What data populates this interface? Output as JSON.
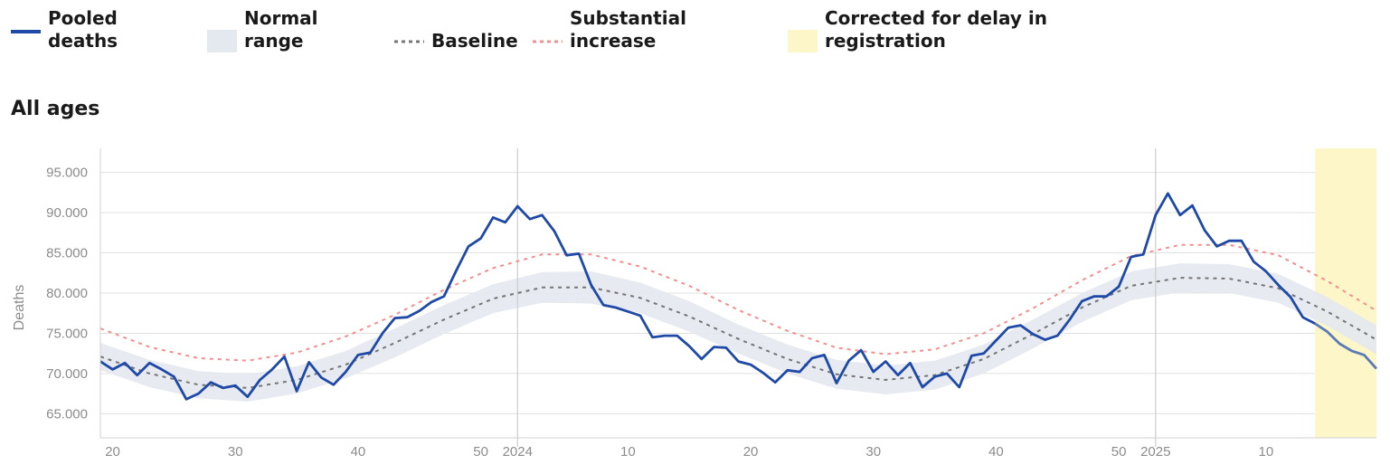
{
  "legend": {
    "pooled_deaths": "Pooled\ndeaths",
    "normal_range": "Normal\nrange",
    "baseline": "Baseline",
    "substantial_increase": "Substantial\nincrease",
    "corrected": "Corrected for delay in\nregistration"
  },
  "colors": {
    "pooled": "#1f49a6",
    "pooled_corrected": "#5a7bb5",
    "band": "#e4e9f0",
    "baseline": "#757575",
    "substantial": "#f28f8f",
    "corrected_shade": "#fdf6c8",
    "grid": "#e0e0e0",
    "year_line": "#cccccc"
  },
  "panel_title": "All ages",
  "chart_data": {
    "type": "line",
    "ylabel": "Deaths",
    "ylim": [
      62000,
      98000
    ],
    "y_ticks": [
      65000,
      70000,
      75000,
      80000,
      85000,
      90000,
      95000
    ],
    "y_tick_labels": [
      "65.000",
      "70.000",
      "75.000",
      "80.000",
      "85.000",
      "90.000",
      "95.000"
    ],
    "x_range": [
      1,
      105
    ],
    "x_ticks": [
      {
        "x": 2,
        "label": "20"
      },
      {
        "x": 12,
        "label": "30"
      },
      {
        "x": 22,
        "label": "40"
      },
      {
        "x": 32,
        "label": "50"
      },
      {
        "x": 35,
        "label": "2024"
      },
      {
        "x": 44,
        "label": "10"
      },
      {
        "x": 54,
        "label": "20"
      },
      {
        "x": 64,
        "label": "30"
      },
      {
        "x": 74,
        "label": "40"
      },
      {
        "x": 84,
        "label": "50"
      },
      {
        "x": 87,
        "label": "2025"
      },
      {
        "x": 96,
        "label": "10"
      }
    ],
    "year_lines": [
      35,
      87
    ],
    "corrected_from": 100,
    "series": [
      {
        "name": "Pooled deaths",
        "x": [
          1,
          2,
          3,
          4,
          5,
          6,
          7,
          8,
          9,
          10,
          11,
          12,
          13,
          14,
          15,
          16,
          17,
          18,
          19,
          20,
          21,
          22,
          23,
          24,
          25,
          26,
          27,
          28,
          29,
          30,
          31,
          32,
          33,
          34,
          35,
          36,
          37,
          38,
          39,
          40,
          41,
          42,
          43,
          44,
          45,
          46,
          47,
          48,
          49,
          50,
          51,
          52,
          53,
          54,
          55,
          56,
          57,
          58,
          59,
          60,
          61,
          62,
          63,
          64,
          65,
          66,
          67,
          68,
          69,
          70,
          71,
          72,
          73,
          74,
          75,
          76,
          77,
          78,
          79,
          80,
          81,
          82,
          83,
          84,
          85,
          86,
          87,
          88,
          89,
          90,
          91,
          92,
          93,
          94,
          95,
          96,
          97,
          98,
          99,
          100,
          101,
          102,
          103,
          104,
          105
        ],
        "values": [
          71500,
          70500,
          71300,
          69800,
          71300,
          70500,
          69600,
          66800,
          67500,
          68900,
          68200,
          68500,
          67100,
          69200,
          70500,
          72100,
          67800,
          71400,
          69500,
          68600,
          70200,
          72300,
          72600,
          75000,
          76900,
          77000,
          77800,
          78900,
          79600,
          82800,
          85800,
          86800,
          89400,
          88800,
          90800,
          89200,
          89700,
          87700,
          84700,
          84900,
          81000,
          78500,
          78200,
          77700,
          77200,
          74500,
          74700,
          74700,
          73400,
          71800,
          73300,
          73200,
          71500,
          71100,
          70100,
          68900,
          70400,
          70200,
          71900,
          72300,
          68800,
          71600,
          72900,
          70200,
          71500,
          69800,
          71300,
          68300,
          69600,
          70000,
          68300,
          72200,
          72500,
          74100,
          75700,
          76000,
          74900,
          74200,
          74700,
          76700,
          79000,
          79600,
          79600,
          80800,
          84500,
          84800,
          89700,
          92400,
          89700,
          90900,
          87800,
          85800,
          86500,
          86500,
          83900,
          82700,
          81000,
          79500,
          77000,
          76200,
          75200,
          73700,
          72800,
          72300,
          70600
        ]
      },
      {
        "name": "Baseline",
        "x": [
          1,
          5,
          9,
          13,
          17,
          21,
          25,
          29,
          33,
          37,
          41,
          45,
          49,
          53,
          57,
          61,
          65,
          69,
          73,
          77,
          81,
          85,
          89,
          93,
          97,
          101,
          105
        ],
        "values": [
          72100,
          70000,
          68600,
          68200,
          69200,
          71100,
          73800,
          76700,
          79300,
          80700,
          80700,
          79400,
          77100,
          74300,
          71800,
          69900,
          69200,
          69800,
          71800,
          74900,
          78200,
          80900,
          81900,
          81800,
          80600,
          77700,
          74200
        ]
      },
      {
        "name": "Substantial increase",
        "x": [
          1,
          5,
          9,
          13,
          17,
          21,
          25,
          29,
          33,
          37,
          41,
          45,
          49,
          53,
          57,
          61,
          65,
          69,
          73,
          77,
          81,
          85,
          89,
          93,
          97,
          101,
          105
        ],
        "values": [
          75600,
          73300,
          71900,
          71600,
          72600,
          74600,
          77300,
          80400,
          83100,
          84800,
          84800,
          83300,
          80900,
          77900,
          75300,
          73200,
          72400,
          73000,
          75000,
          78100,
          81600,
          84600,
          86000,
          86000,
          84700,
          81500,
          77800
        ]
      },
      {
        "name": "Normal range",
        "x": [
          1,
          5,
          9,
          13,
          17,
          21,
          25,
          29,
          33,
          37,
          41,
          45,
          49,
          53,
          57,
          61,
          65,
          69,
          73,
          77,
          81,
          85,
          89,
          93,
          97,
          101,
          105
        ],
        "upper": [
          73800,
          71700,
          70300,
          69900,
          70900,
          72800,
          75600,
          78500,
          81100,
          82600,
          82700,
          81300,
          79000,
          76100,
          73600,
          71700,
          71000,
          71600,
          73600,
          76700,
          80000,
          82700,
          83700,
          83600,
          82400,
          79500,
          76000
        ],
        "lower": [
          70400,
          68300,
          66900,
          66500,
          67500,
          69400,
          72000,
          74900,
          77500,
          78800,
          78700,
          77500,
          75200,
          72500,
          70000,
          68100,
          67400,
          68000,
          70000,
          73100,
          76400,
          79100,
          80100,
          80000,
          78800,
          75900,
          72400
        ]
      }
    ]
  }
}
